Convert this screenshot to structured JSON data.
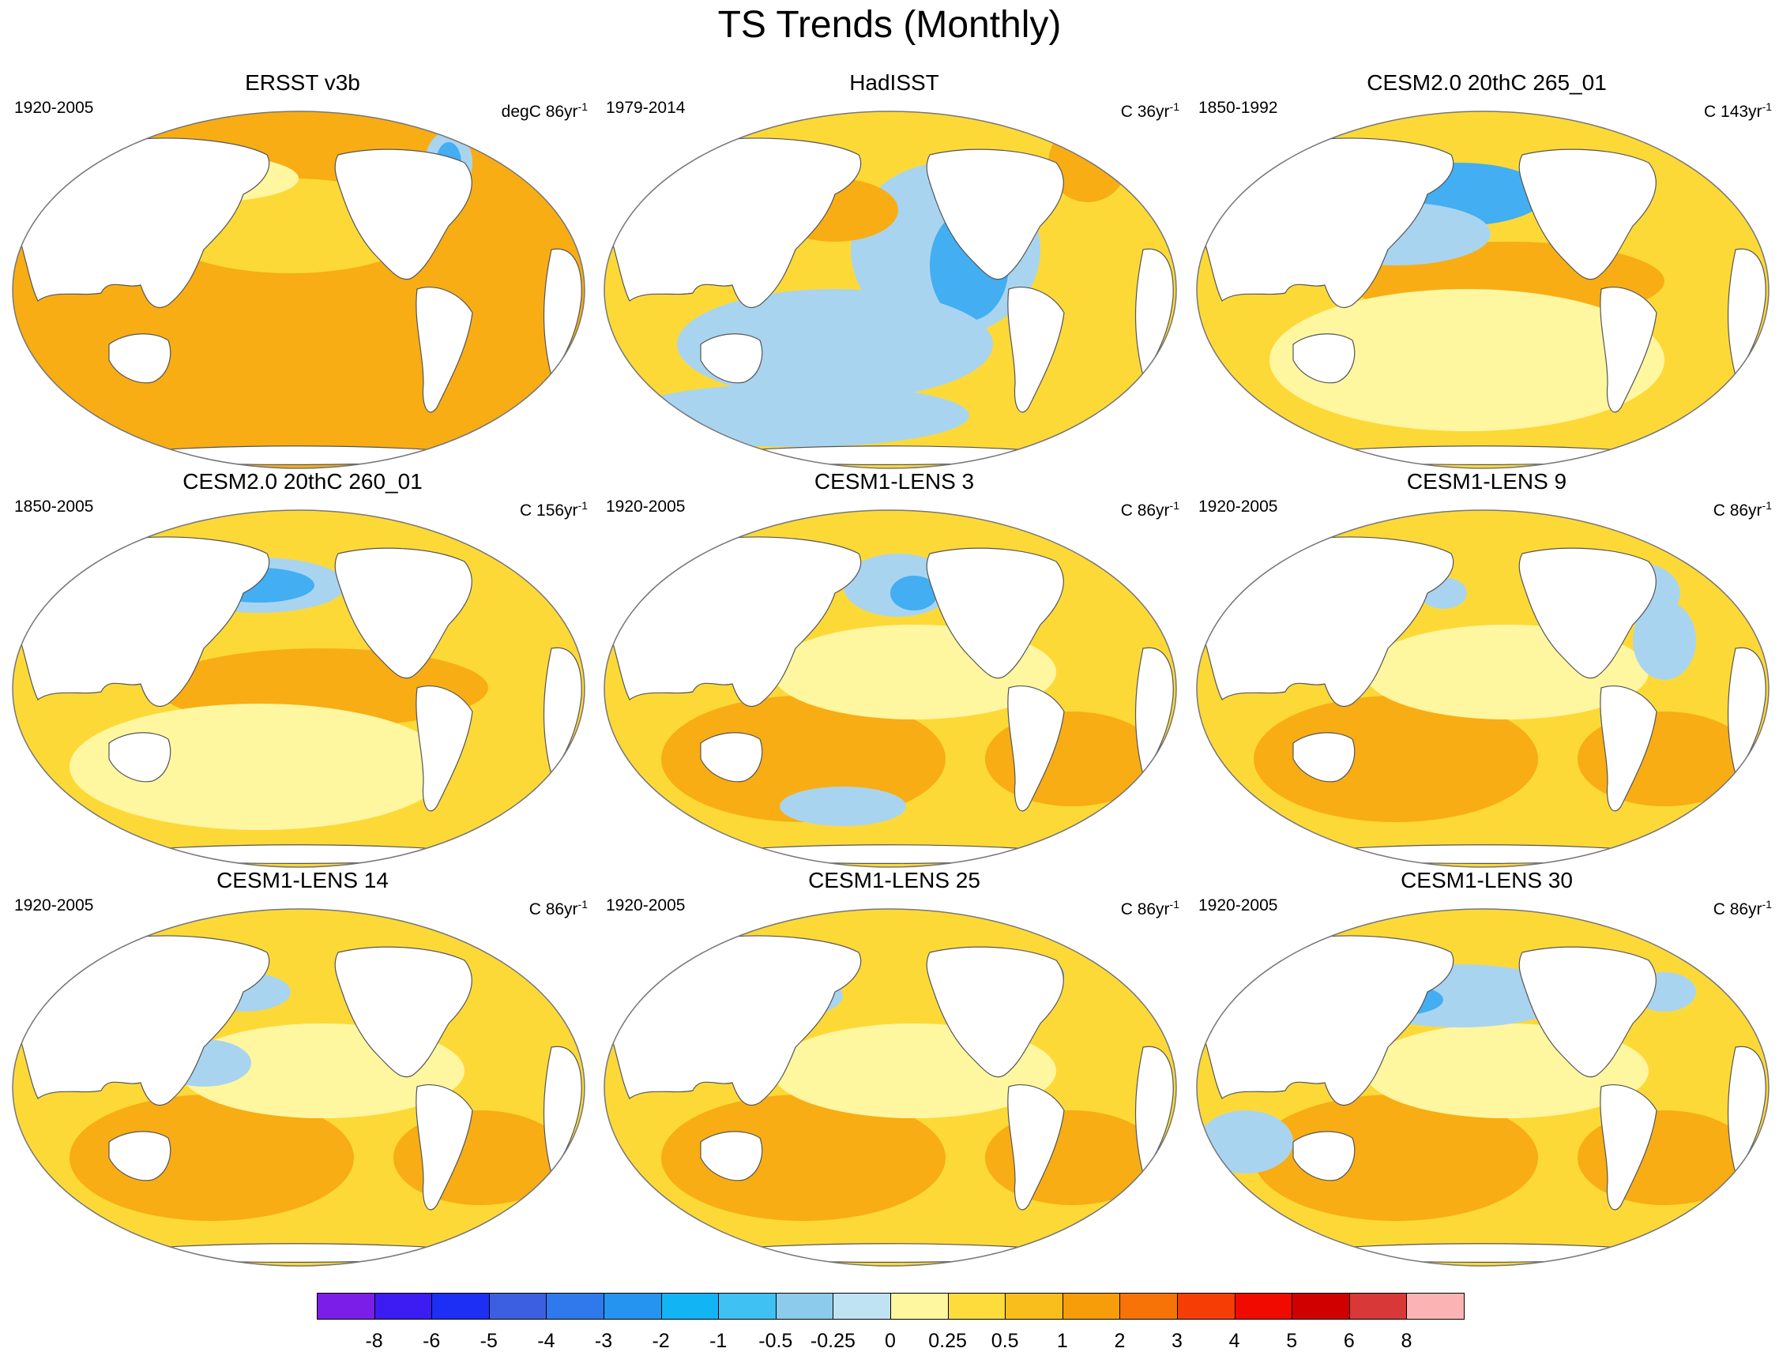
{
  "figure": {
    "title": "TS Trends (Monthly)"
  },
  "panels": [
    {
      "title": "ERSST v3b",
      "period": "1920-2005",
      "units": "degC 86yr",
      "units_exp": "-1"
    },
    {
      "title": "HadISST",
      "period": "1979-2014",
      "units": "C 36yr",
      "units_exp": "-1"
    },
    {
      "title": "CESM2.0 20thC 265_01",
      "period": "1850-1992",
      "units": "C 143yr",
      "units_exp": "-1"
    },
    {
      "title": "CESM2.0 20thC 260_01",
      "period": "1850-2005",
      "units": "C 156yr",
      "units_exp": "-1"
    },
    {
      "title": "CESM1-LENS 3",
      "period": "1920-2005",
      "units": "C 86yr",
      "units_exp": "-1"
    },
    {
      "title": "CESM1-LENS 9",
      "period": "1920-2005",
      "units": "C 86yr",
      "units_exp": "-1"
    },
    {
      "title": "CESM1-LENS 14",
      "period": "1920-2005",
      "units": "C 86yr",
      "units_exp": "-1"
    },
    {
      "title": "CESM1-LENS 25",
      "period": "1920-2005",
      "units": "C 86yr",
      "units_exp": "-1"
    },
    {
      "title": "CESM1-LENS 30",
      "period": "1920-2005",
      "units": "C 86yr",
      "units_exp": "-1"
    }
  ],
  "colorbar": {
    "labels": [
      "-8",
      "-6",
      "-5",
      "-4",
      "-3",
      "-2",
      "-1",
      "-0.5",
      "-0.25",
      "0",
      "0.25",
      "0.5",
      "1",
      "2",
      "3",
      "4",
      "5",
      "6",
      "8"
    ],
    "colors": [
      "#7b1fe8",
      "#3c1cf2",
      "#1d2ef5",
      "#3b5fe0",
      "#2f79ec",
      "#2593f0",
      "#12b4f4",
      "#3fc1f3",
      "#8ccbec",
      "#c0e3f4",
      "#fff6a0",
      "#fddc3c",
      "#f9bd1c",
      "#f79d0a",
      "#f77308",
      "#f53d05",
      "#f00a00",
      "#d10000",
      "#d83838",
      "#fbb3b3"
    ]
  },
  "map_palette": {
    "ocean_base_warm": "#fdd938",
    "ocean_base_light": "#fff6a0",
    "ocean_cool": "#a9d4f0",
    "ocean_cold": "#43aef2",
    "ocean_orange": "#f8ad14",
    "land": "#ffffff",
    "outline": "#555555"
  }
}
